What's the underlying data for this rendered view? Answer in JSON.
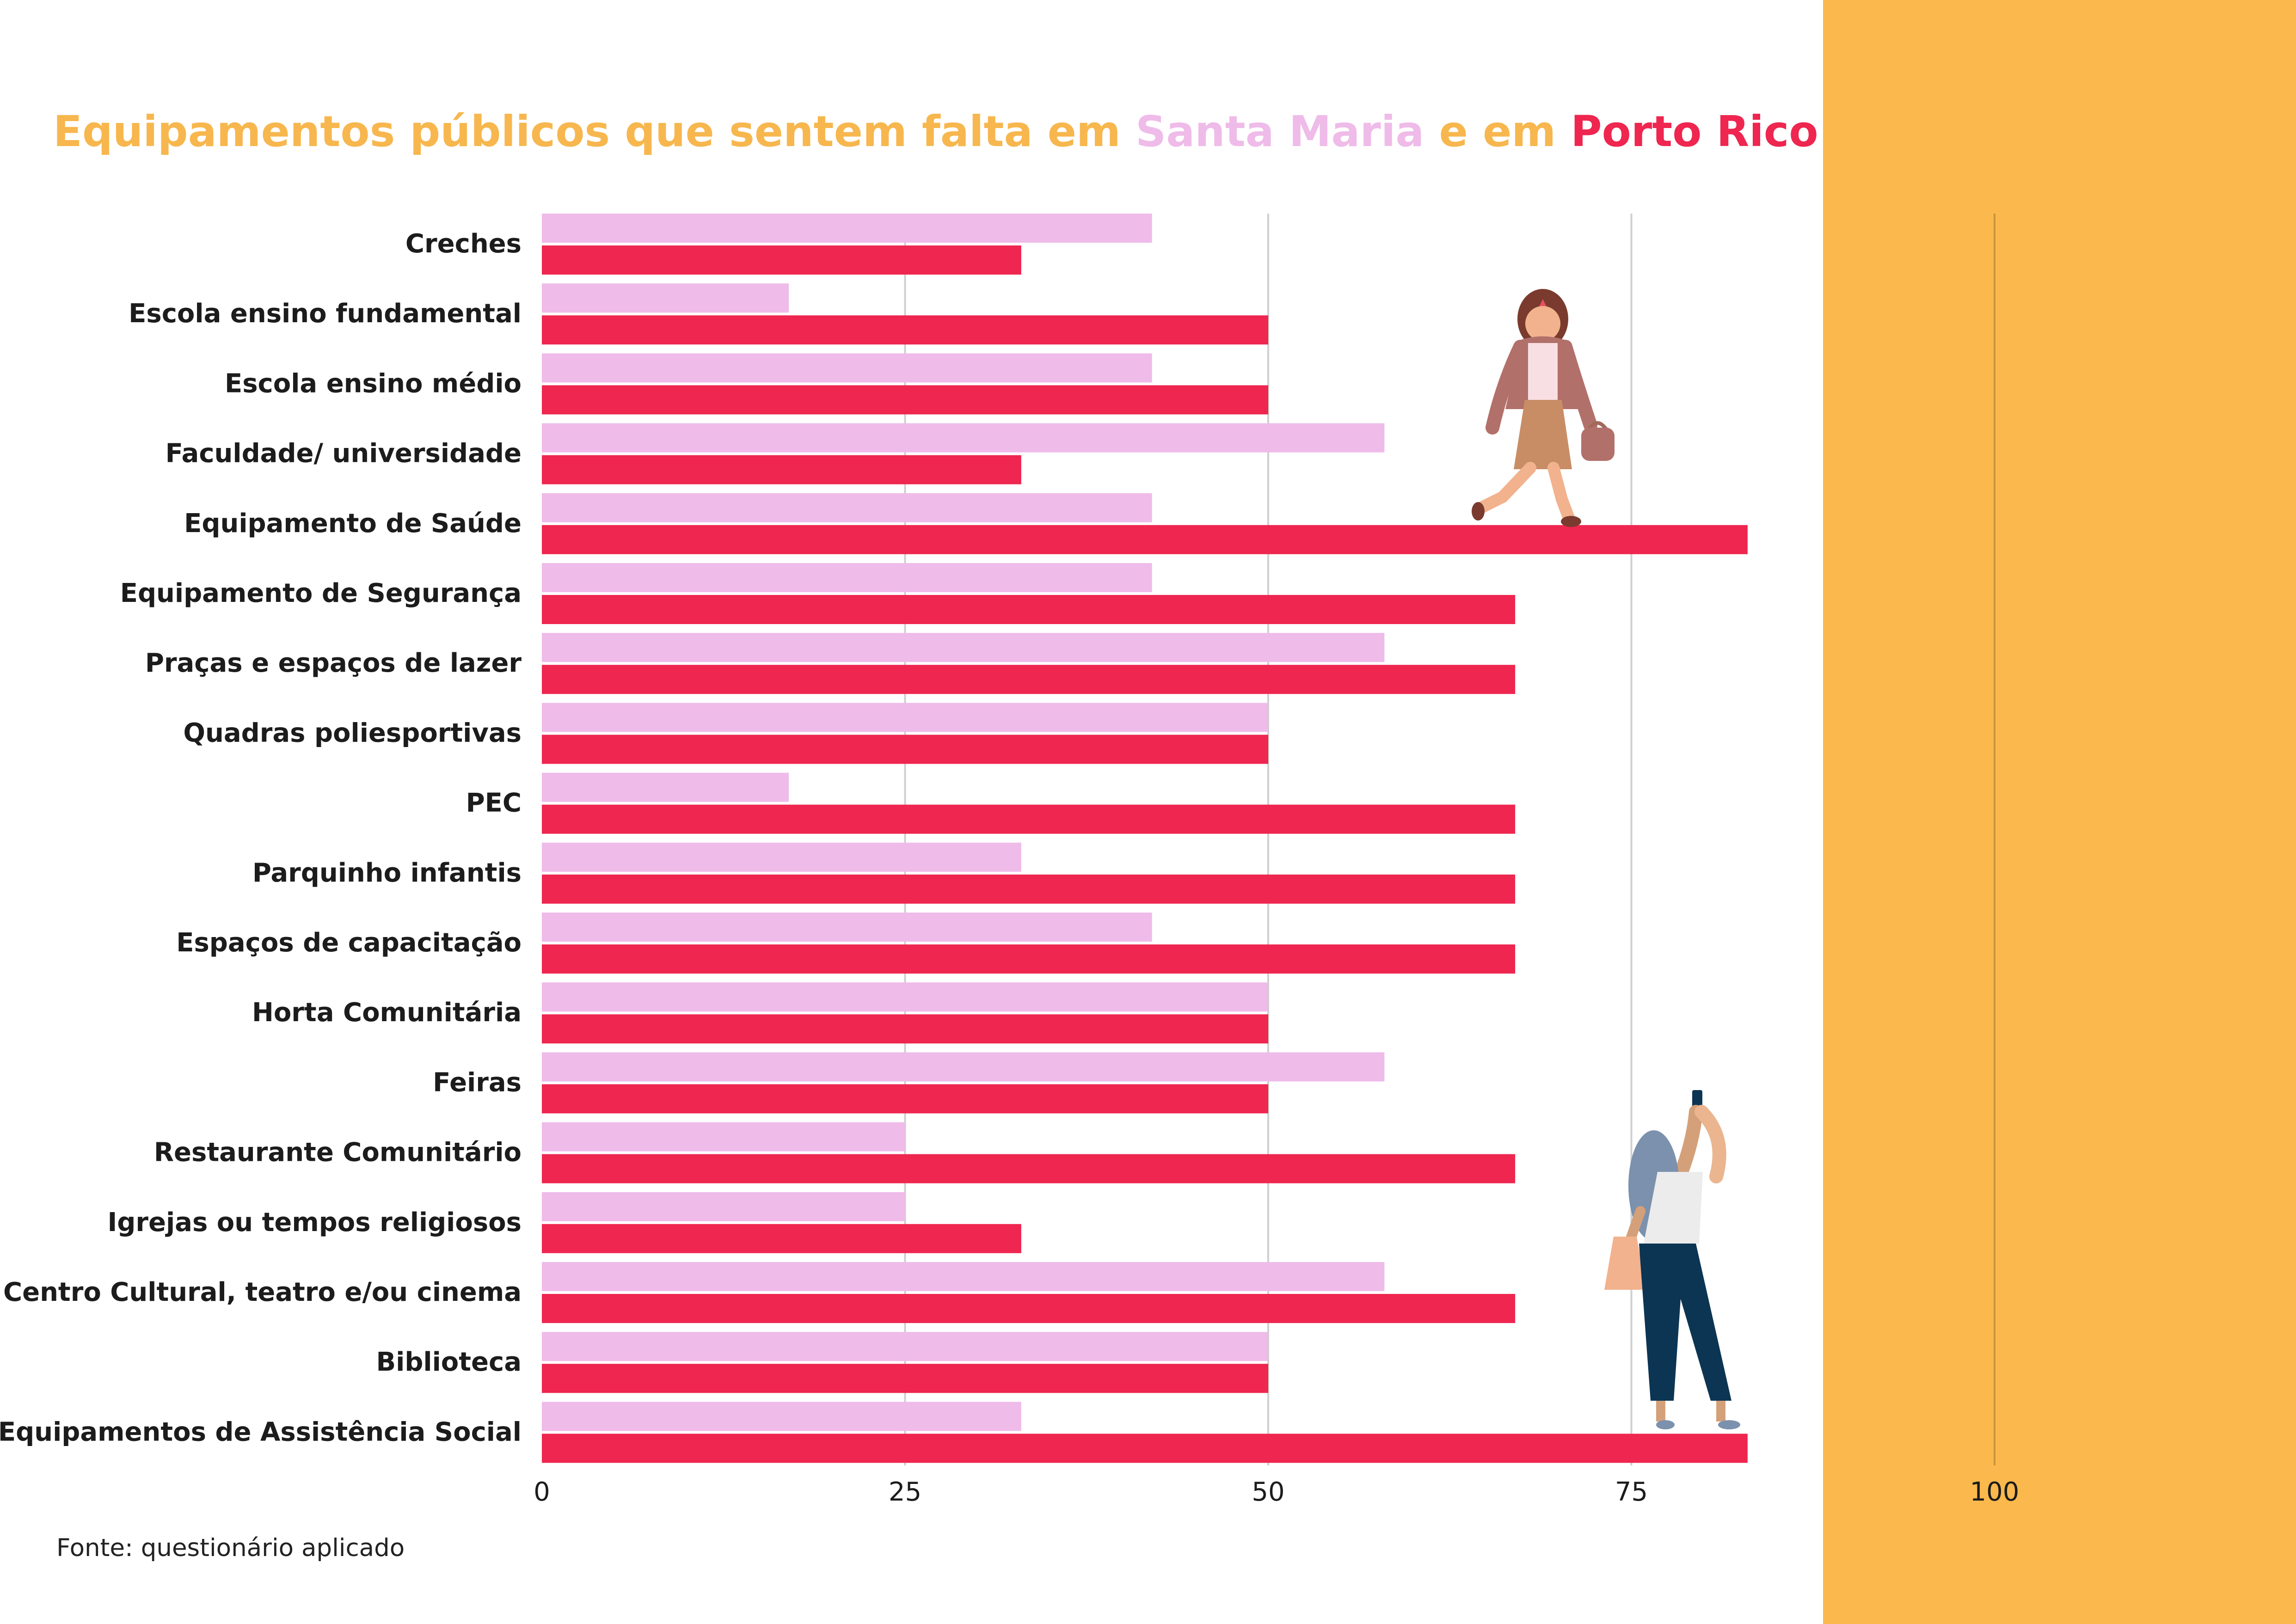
{
  "colors": {
    "title": "#F7B74E",
    "santa_maria": "#EFBBE9",
    "porto_rico": "#EE2650",
    "side_panel": "#FBB84C",
    "grid": "#cfcfcf",
    "grid_on_panel": "#c9953c"
  },
  "title_parts": {
    "part1": "Equipamentos públicos que sentem falta em ",
    "part2": "Santa Maria",
    "part3": " e em ",
    "part4": "Porto Rico"
  },
  "source": "Fonte: questionário aplicado",
  "chart_data": {
    "type": "bar",
    "orientation": "horizontal",
    "title": "Equipamentos públicos que sentem falta em Santa Maria e em Porto Rico",
    "categories": [
      "Creches",
      "Escola ensino fundamental",
      "Escola ensino médio",
      "Faculdade/ universidade",
      "Equipamento de Saúde",
      "Equipamento de Segurança",
      "Praças e espaços de lazer",
      "Quadras poliesportivas",
      "PEC",
      "Parquinho infantis",
      "Espaços de capacitação",
      "Horta Comunitária",
      "Feiras",
      "Restaurante Comunitário",
      "Igrejas ou tempos religiosos",
      "Centro Cultural, teatro e/ou cinema",
      "Biblioteca",
      "Equipamentos de Assistência Social"
    ],
    "series": [
      {
        "name": "Santa Maria",
        "color": "#EFBBE9",
        "values": [
          42,
          17,
          42,
          58,
          42,
          42,
          58,
          50,
          17,
          33,
          42,
          50,
          58,
          25,
          25,
          58,
          50,
          33
        ]
      },
      {
        "name": "Porto Rico",
        "color": "#EE2650",
        "values": [
          33,
          50,
          50,
          33,
          83,
          67,
          67,
          50,
          67,
          67,
          67,
          50,
          50,
          67,
          33,
          67,
          50,
          83
        ]
      }
    ],
    "x_ticks": [
      0,
      25,
      50,
      75,
      100
    ],
    "xlim": [
      0,
      100
    ],
    "grid": true
  }
}
